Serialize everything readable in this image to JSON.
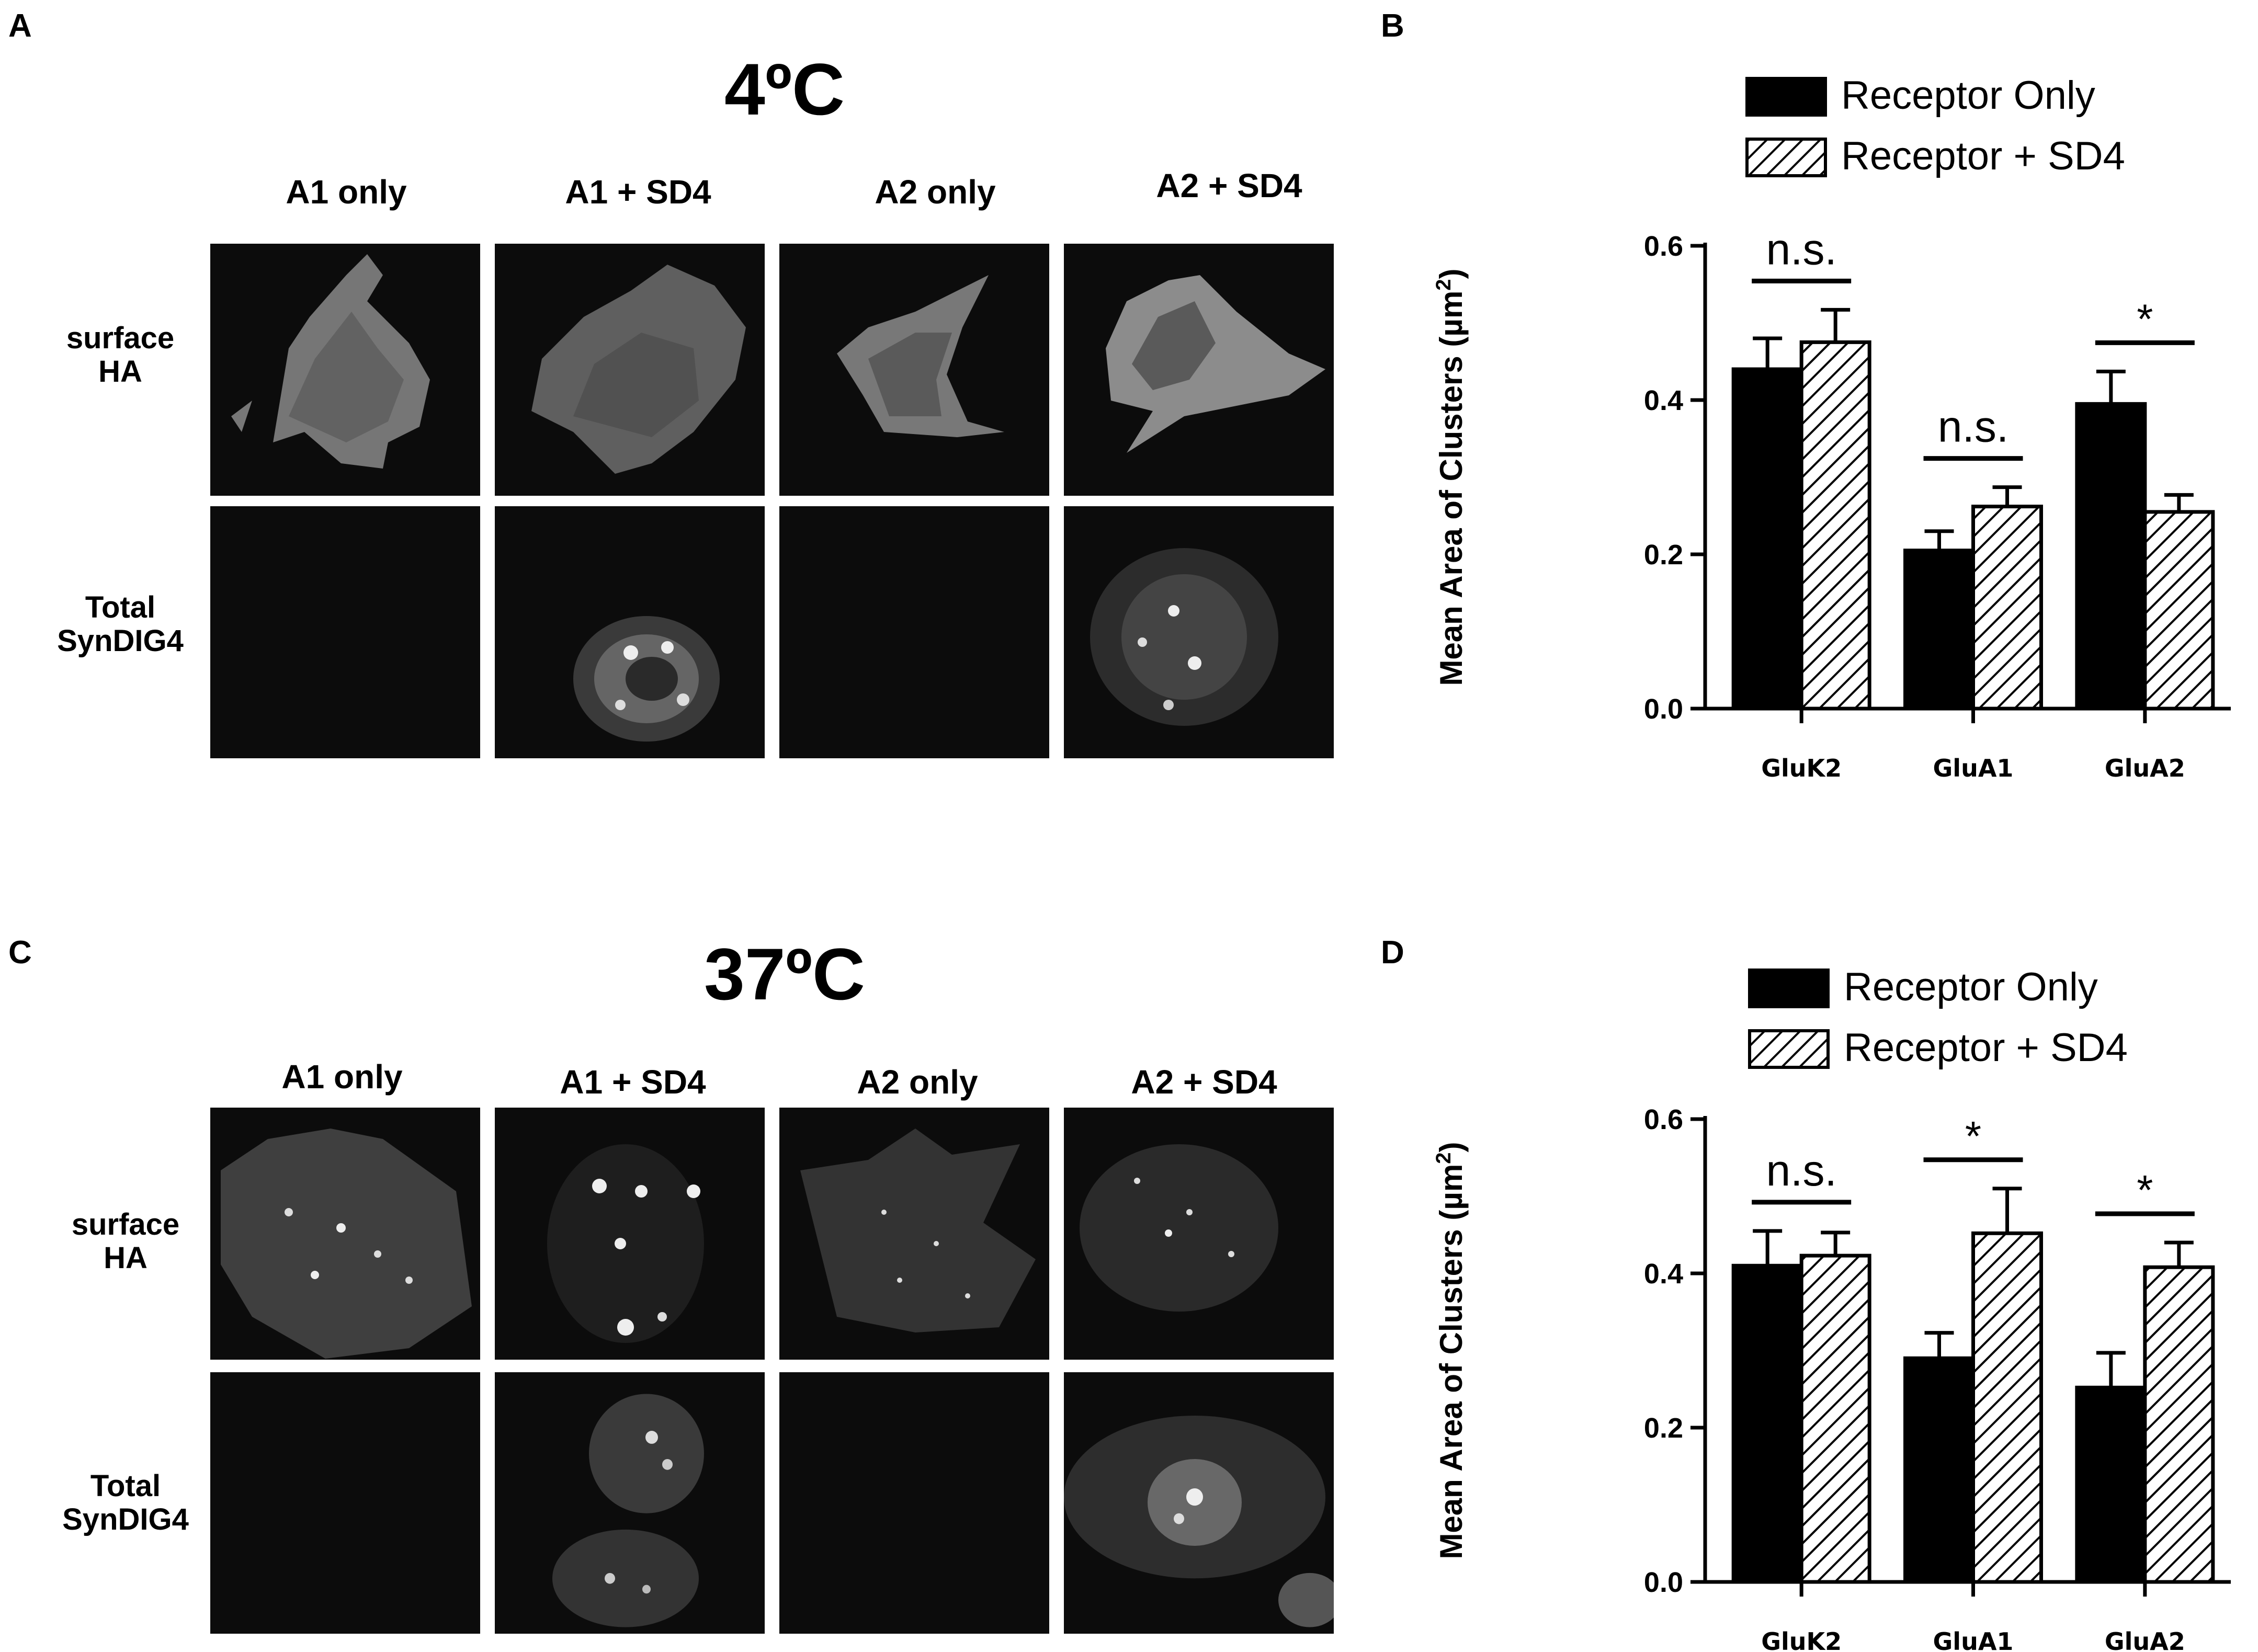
{
  "panels": {
    "a": {
      "letter": "A",
      "title": "4ºC",
      "columns": [
        "A1 only",
        "A1 + SD4",
        "A2 only",
        "A2 + SD4"
      ],
      "rows": [
        {
          "line1": "surface",
          "line2": "HA"
        },
        {
          "line1": "Total",
          "line2": "SynDIG4"
        }
      ]
    },
    "b": {
      "letter": "B"
    },
    "c": {
      "letter": "C",
      "title": "37ºC",
      "columns": [
        "A1 only",
        "A1 + SD4",
        "A2 only",
        "A2 + SD4"
      ],
      "rows": [
        {
          "line1": "surface",
          "line2": "HA"
        },
        {
          "line1": "Total",
          "line2": "SynDIG4"
        }
      ]
    },
    "d": {
      "letter": "D"
    }
  },
  "chart_data": [
    {
      "type": "bar",
      "panel": "B",
      "categories": [
        "GluK2",
        "GluA1",
        "GluA2"
      ],
      "series": [
        {
          "name": "Receptor Only",
          "fill": "solid",
          "values": [
            0.44,
            0.205,
            0.395
          ],
          "errors": [
            0.04,
            0.025,
            0.042
          ]
        },
        {
          "name": "Receptor + SD4",
          "fill": "hatched",
          "values": [
            0.475,
            0.262,
            0.255
          ],
          "errors": [
            0.042,
            0.025,
            0.022
          ]
        }
      ],
      "significance": [
        "n.s.",
        "n.s.",
        "*"
      ],
      "ylabel": "Mean Area of Clusters (µm",
      "ylabel_sup": "2",
      "ylabel_end": ")",
      "ylim": [
        0,
        0.6
      ],
      "yticks": [
        "0.0",
        "0.2",
        "0.4",
        "0.6"
      ],
      "legend_position": "top-right",
      "colors": {
        "solid": "#000000",
        "hatch": "#000000"
      }
    },
    {
      "type": "bar",
      "panel": "D",
      "categories": [
        "GluK2",
        "GluA1",
        "GluA2"
      ],
      "series": [
        {
          "name": "Receptor Only",
          "fill": "solid",
          "values": [
            0.41,
            0.29,
            0.252
          ],
          "errors": [
            0.045,
            0.033,
            0.045
          ]
        },
        {
          "name": "Receptor + SD4",
          "fill": "hatched",
          "values": [
            0.423,
            0.452,
            0.408
          ],
          "errors": [
            0.03,
            0.058,
            0.032
          ]
        }
      ],
      "significance": [
        "n.s.",
        "*",
        "*"
      ],
      "ylabel": "Mean Area of Clusters (µm",
      "ylabel_sup": "2",
      "ylabel_end": ")",
      "ylim": [
        0,
        0.6
      ],
      "yticks": [
        "0.0",
        "0.2",
        "0.4",
        "0.6"
      ],
      "legend_position": "top-right",
      "colors": {
        "solid": "#000000",
        "hatch": "#000000"
      }
    }
  ]
}
